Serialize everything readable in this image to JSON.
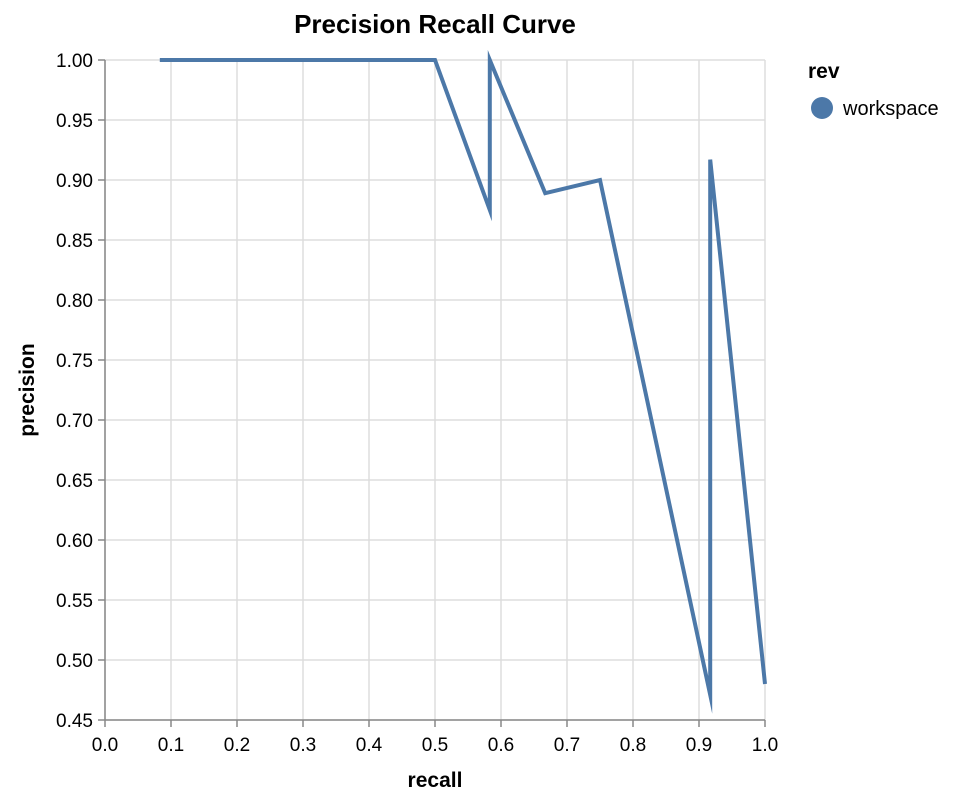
{
  "chart_data": {
    "type": "line",
    "title": "Precision Recall Curve",
    "xlabel": "recall",
    "ylabel": "precision",
    "xlim": [
      0.0,
      1.0
    ],
    "ylim": [
      0.45,
      1.0
    ],
    "x_ticks": [
      "0.0",
      "0.1",
      "0.2",
      "0.3",
      "0.4",
      "0.5",
      "0.6",
      "0.7",
      "0.8",
      "0.9",
      "1.0"
    ],
    "y_ticks": [
      "0.45",
      "0.50",
      "0.55",
      "0.60",
      "0.65",
      "0.70",
      "0.75",
      "0.80",
      "0.85",
      "0.90",
      "0.95",
      "1.00"
    ],
    "grid": true,
    "legend": {
      "title": "rev",
      "placement": "top-right",
      "entries": [
        {
          "name": "workspace",
          "color": "#4c78a8"
        }
      ]
    },
    "series": [
      {
        "name": "workspace",
        "color": "#4c78a8",
        "x": [
          0.083,
          0.167,
          0.25,
          0.333,
          0.417,
          0.5,
          0.583,
          0.583,
          0.667,
          0.75,
          0.917,
          0.917,
          1.0
        ],
        "y": [
          1.0,
          1.0,
          1.0,
          1.0,
          1.0,
          1.0,
          0.875,
          1.0,
          0.889,
          0.9,
          0.471,
          0.917,
          0.48
        ]
      }
    ]
  }
}
